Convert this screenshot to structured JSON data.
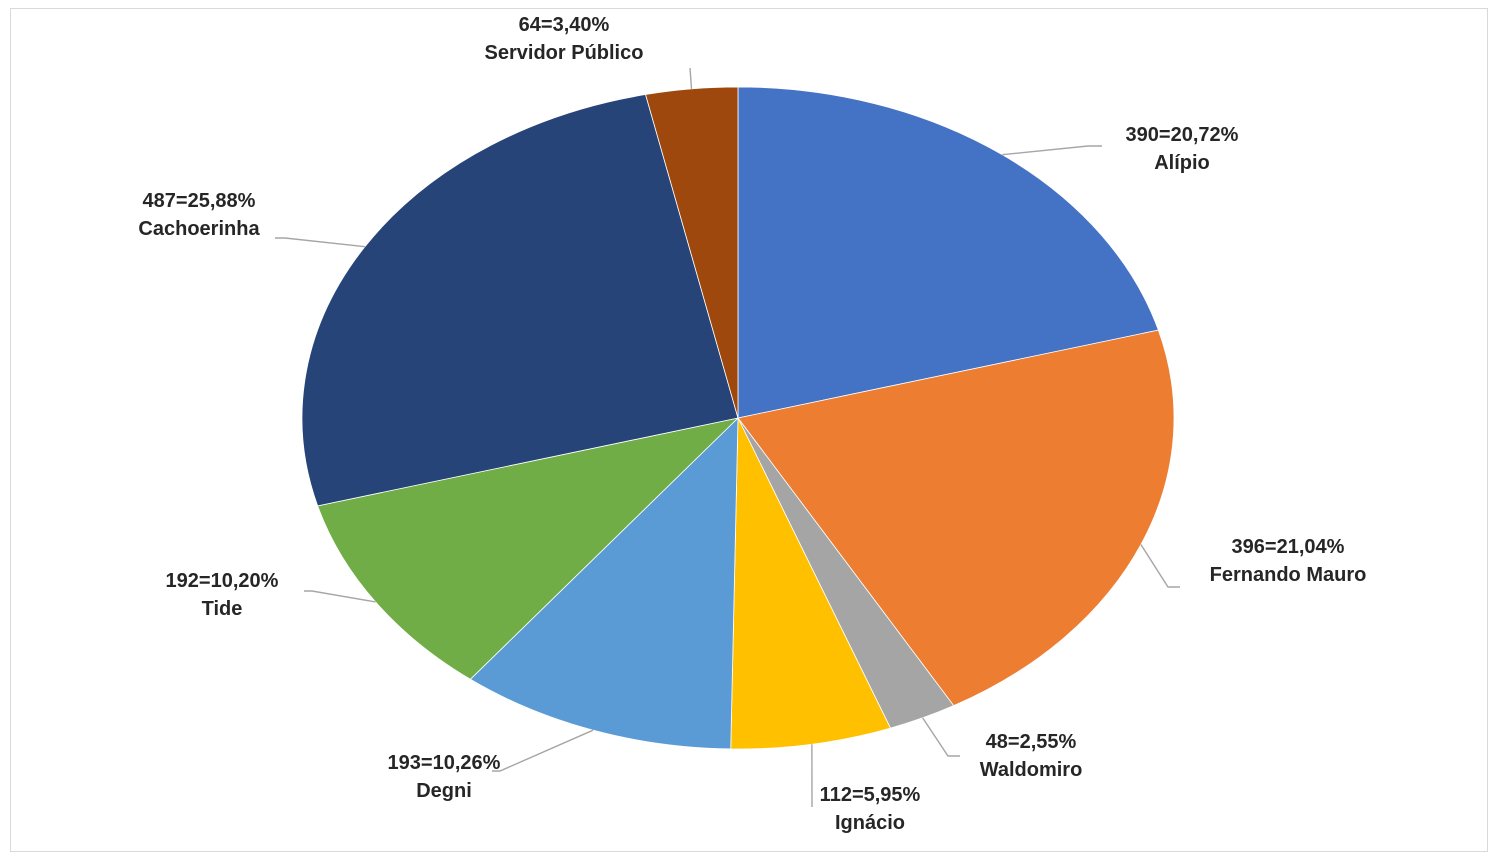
{
  "chart_data": {
    "type": "pie",
    "title": "",
    "slices": [
      {
        "name": "Alípio",
        "value": 390,
        "percent": "20,72%",
        "label": "390=20,72%",
        "color": "#4472C4"
      },
      {
        "name": "Fernando Mauro",
        "value": 396,
        "percent": "21,04%",
        "label": "396=21,04%",
        "color": "#ED7D31"
      },
      {
        "name": "Waldomiro",
        "value": 48,
        "percent": "2,55%",
        "label": "48=2,55%",
        "color": "#A5A5A5"
      },
      {
        "name": "Ignácio",
        "value": 112,
        "percent": "5,95%",
        "label": "112=5,95%",
        "color": "#FFC000"
      },
      {
        "name": "Degni",
        "value": 193,
        "percent": "10,26%",
        "label": "193=10,26%",
        "color": "#5B9BD5"
      },
      {
        "name": "Tide",
        "value": 192,
        "percent": "10,20%",
        "label": "192=10,20%",
        "color": "#70AD47"
      },
      {
        "name": "Cachoerinha",
        "value": 487,
        "percent": "25,88%",
        "label": "487=25,88%",
        "color": "#264478"
      },
      {
        "name": "Servidor Público",
        "value": 64,
        "percent": "3,40%",
        "label": "64=3,40%",
        "color": "#9E480E"
      }
    ],
    "legend": "none",
    "data_labels": "outside-with-leader-lines"
  }
}
